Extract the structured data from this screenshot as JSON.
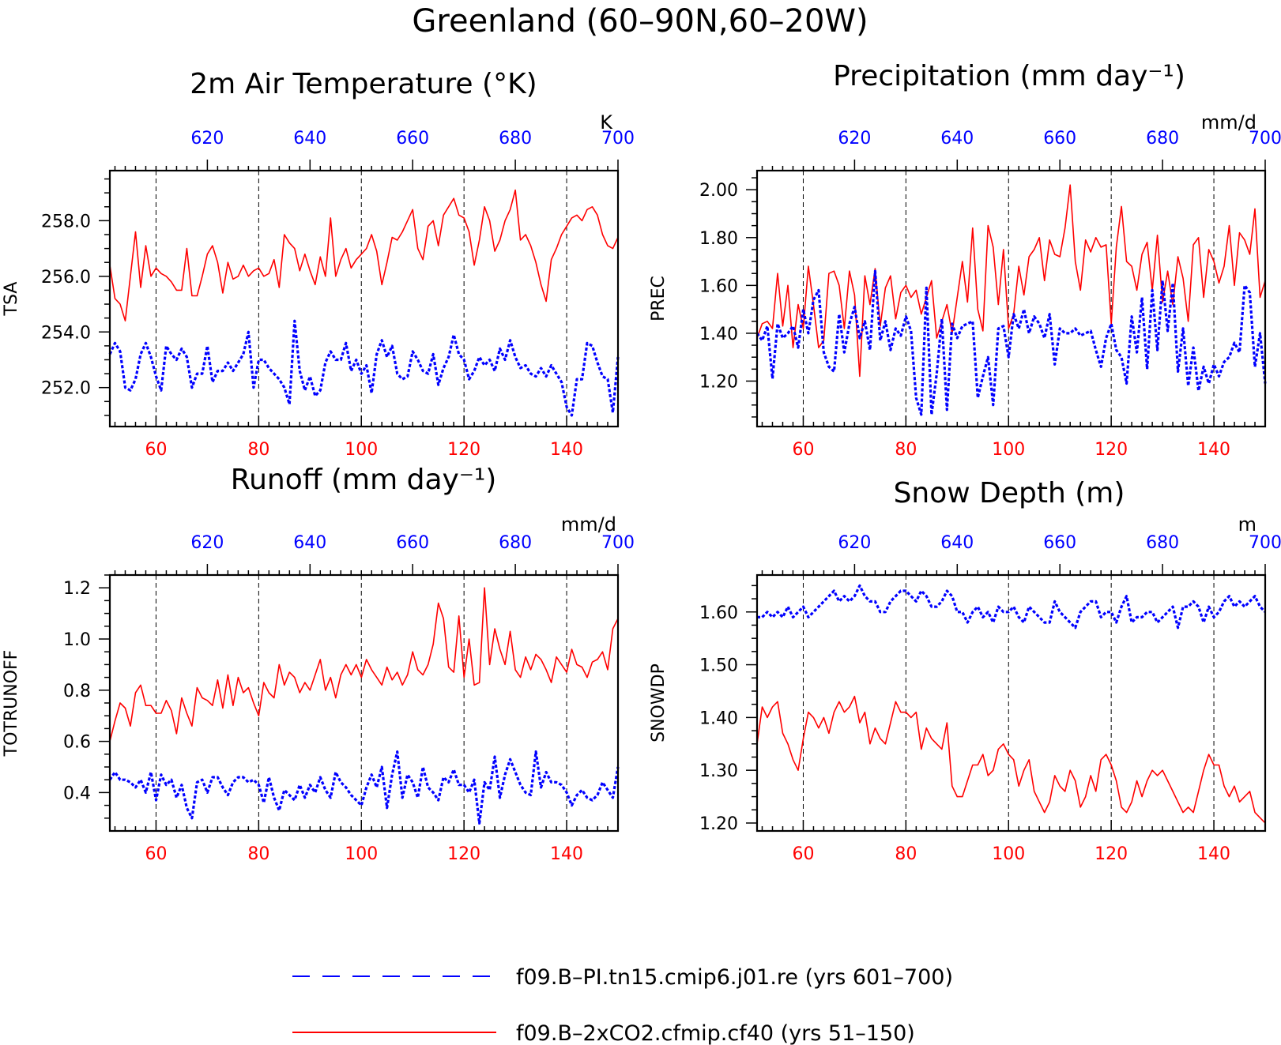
{
  "page_title": "Greenland (60–90N,60–20W)",
  "colors": {
    "red": "#ff0000",
    "blue": "#0000ff",
    "axis": "#000000"
  },
  "legend": [
    {
      "label": "f09.B–PI.tn15.cmip6.j01.re (yrs 601–700)",
      "color": "#0000ff",
      "style": "dashed"
    },
    {
      "label": "f09.B–2xCO2.cfmip.cf40 (yrs 51–150)",
      "color": "#ff0000",
      "style": "solid"
    }
  ],
  "chart_data": [
    {
      "id": "tsa",
      "type": "line",
      "title": "2m Air Temperature (°K)",
      "ylabel": "TSA",
      "units": "K",
      "xlim": [
        51,
        150
      ],
      "ylim": [
        250.6,
        259.8
      ],
      "yticks": [
        252.0,
        254.0,
        256.0,
        258.0
      ],
      "ytick_labels": [
        "252.0",
        "254.0",
        "256.0",
        "258.0"
      ],
      "xticks": [
        60,
        80,
        100,
        120,
        140
      ],
      "x_top_ticks": [
        620,
        640,
        660,
        680,
        700
      ],
      "x_top_range": [
        601,
        700
      ],
      "series": [
        {
          "values": [
            256.4,
            255.2,
            255.0,
            254.4,
            256.0,
            257.6,
            255.6,
            257.1,
            256.0,
            256.3,
            256.1,
            256.0,
            255.8,
            255.5,
            255.5,
            257.0,
            255.3,
            255.3,
            256.0,
            256.8,
            257.1,
            256.5,
            255.4,
            256.5,
            255.9,
            256.0,
            256.4,
            256.0,
            256.2,
            256.3,
            256.0,
            256.1,
            256.6,
            255.6,
            257.5,
            257.2,
            257.0,
            256.2,
            256.8,
            256.2,
            255.7,
            256.7,
            256.0,
            258.1,
            256.0,
            256.6,
            257.0,
            256.3,
            256.6,
            256.8,
            257.0,
            257.5,
            256.9,
            255.7,
            256.5,
            257.4,
            257.3,
            257.6,
            258.0,
            258.4,
            257.0,
            256.6,
            257.8,
            258.0,
            257.1,
            258.2,
            258.5,
            258.8,
            258.2,
            258.1,
            257.6,
            256.4,
            257.3,
            258.5,
            258.0,
            256.9,
            257.3,
            258.0,
            258.4,
            259.1,
            257.3,
            257.5,
            257.1,
            256.5,
            255.7,
            255.1,
            256.6,
            257.0,
            257.5,
            257.8,
            258.1,
            258.2,
            258.0,
            258.4,
            258.5,
            258.2,
            257.5,
            257.1,
            257.0,
            257.4
          ]
        },
        {
          "values": [
            253.2,
            253.6,
            253.3,
            252.0,
            251.9,
            252.3,
            253.2,
            253.6,
            253.1,
            252.4,
            251.9,
            253.5,
            253.2,
            253.0,
            253.4,
            253.1,
            252.0,
            252.5,
            252.5,
            253.5,
            252.2,
            252.6,
            252.6,
            252.9,
            252.6,
            252.9,
            253.2,
            254.0,
            252.0,
            253.0,
            253.0,
            252.7,
            252.5,
            252.3,
            252.0,
            251.4,
            254.4,
            252.6,
            251.9,
            252.4,
            251.7,
            251.9,
            252.9,
            253.3,
            253.0,
            253.0,
            253.6,
            252.6,
            253.0,
            252.5,
            252.8,
            251.8,
            253.2,
            253.7,
            253.1,
            253.5,
            252.5,
            252.3,
            252.4,
            253.3,
            253.0,
            252.6,
            252.5,
            253.2,
            252.1,
            252.7,
            253.1,
            253.9,
            253.2,
            253.0,
            252.3,
            252.6,
            253.1,
            252.8,
            253.0,
            252.6,
            253.4,
            253.0,
            253.7,
            253.1,
            252.7,
            252.8,
            252.5,
            252.4,
            252.7,
            252.4,
            252.8,
            252.5,
            252.2,
            251.3,
            251.0,
            252.3,
            252.3,
            253.6,
            253.5,
            252.9,
            252.4,
            252.3,
            251.1,
            253.1
          ]
        }
      ]
    },
    {
      "id": "prec",
      "type": "line",
      "title": "Precipitation (mm day⁻¹)",
      "ylabel": "PREC",
      "units": "mm/d",
      "xlim": [
        51,
        150
      ],
      "ylim": [
        1.01,
        2.08
      ],
      "yticks": [
        1.2,
        1.4,
        1.6,
        1.8,
        2.0
      ],
      "ytick_labels": [
        "1.20",
        "1.40",
        "1.60",
        "1.80",
        "2.00"
      ],
      "xticks": [
        60,
        80,
        100,
        120,
        140
      ],
      "x_top_ticks": [
        620,
        640,
        660,
        680,
        700
      ],
      "x_top_range": [
        601,
        700
      ],
      "series": [
        {
          "values": [
            1.38,
            1.44,
            1.45,
            1.42,
            1.65,
            1.43,
            1.6,
            1.34,
            1.52,
            1.42,
            1.68,
            1.52,
            1.34,
            1.37,
            1.65,
            1.66,
            1.6,
            1.42,
            1.66,
            1.56,
            1.22,
            1.64,
            1.52,
            1.67,
            1.43,
            1.59,
            1.64,
            1.46,
            1.57,
            1.6,
            1.55,
            1.58,
            1.48,
            1.55,
            1.62,
            1.38,
            1.45,
            1.52,
            1.4,
            1.55,
            1.7,
            1.53,
            1.84,
            1.5,
            1.41,
            1.85,
            1.76,
            1.52,
            1.75,
            1.42,
            1.48,
            1.68,
            1.56,
            1.72,
            1.75,
            1.8,
            1.62,
            1.79,
            1.73,
            1.72,
            1.84,
            2.02,
            1.7,
            1.58,
            1.79,
            1.74,
            1.8,
            1.76,
            1.77,
            1.44,
            1.76,
            1.93,
            1.7,
            1.68,
            1.58,
            1.73,
            1.78,
            1.58,
            1.81,
            1.53,
            1.66,
            1.52,
            1.72,
            1.63,
            1.45,
            1.77,
            1.8,
            1.55,
            1.75,
            1.7,
            1.61,
            1.68,
            1.85,
            1.6,
            1.82,
            1.79,
            1.73,
            1.92,
            1.55,
            1.62
          ]
        },
        {
          "values": [
            1.4,
            1.37,
            1.43,
            1.21,
            1.44,
            1.38,
            1.4,
            1.43,
            1.34,
            1.5,
            1.4,
            1.54,
            1.58,
            1.32,
            1.26,
            1.24,
            1.48,
            1.32,
            1.44,
            1.51,
            1.38,
            1.45,
            1.33,
            1.66,
            1.37,
            1.45,
            1.33,
            1.42,
            1.39,
            1.47,
            1.41,
            1.13,
            1.06,
            1.59,
            1.06,
            1.23,
            1.46,
            1.08,
            1.44,
            1.38,
            1.43,
            1.44,
            1.45,
            1.13,
            1.22,
            1.3,
            1.1,
            1.42,
            1.43,
            1.3,
            1.48,
            1.42,
            1.5,
            1.4,
            1.47,
            1.44,
            1.38,
            1.48,
            1.27,
            1.42,
            1.4,
            1.4,
            1.42,
            1.39,
            1.4,
            1.41,
            1.33,
            1.26,
            1.38,
            1.44,
            1.33,
            1.3,
            1.19,
            1.47,
            1.32,
            1.55,
            1.25,
            1.58,
            1.33,
            1.62,
            1.41,
            1.61,
            1.24,
            1.42,
            1.18,
            1.34,
            1.16,
            1.26,
            1.19,
            1.27,
            1.22,
            1.28,
            1.3,
            1.36,
            1.32,
            1.6,
            1.57,
            1.26,
            1.4,
            1.19
          ]
        }
      ]
    },
    {
      "id": "totrunoff",
      "type": "line",
      "title": "Runoff (mm day⁻¹)",
      "ylabel": "TOTRUNOFF",
      "units": "mm/d",
      "xlim": [
        51,
        150
      ],
      "ylim": [
        0.25,
        1.25
      ],
      "yticks": [
        0.4,
        0.6,
        0.8,
        1.0,
        1.2
      ],
      "ytick_labels": [
        "0.4",
        "0.6",
        "0.8",
        "1.0",
        "1.2"
      ],
      "xticks": [
        60,
        80,
        100,
        120,
        140
      ],
      "x_top_ticks": [
        620,
        640,
        660,
        680,
        700
      ],
      "x_top_range": [
        601,
        700
      ],
      "series": [
        {
          "values": [
            0.6,
            0.68,
            0.75,
            0.73,
            0.66,
            0.79,
            0.82,
            0.74,
            0.74,
            0.71,
            0.71,
            0.76,
            0.72,
            0.63,
            0.77,
            0.71,
            0.66,
            0.81,
            0.77,
            0.76,
            0.74,
            0.84,
            0.73,
            0.86,
            0.74,
            0.85,
            0.79,
            0.81,
            0.75,
            0.7,
            0.83,
            0.79,
            0.77,
            0.9,
            0.82,
            0.87,
            0.85,
            0.79,
            0.83,
            0.8,
            0.86,
            0.92,
            0.8,
            0.85,
            0.77,
            0.86,
            0.9,
            0.86,
            0.9,
            0.85,
            0.92,
            0.88,
            0.85,
            0.82,
            0.89,
            0.84,
            0.87,
            0.82,
            0.86,
            0.95,
            0.88,
            0.86,
            0.9,
            0.98,
            1.14,
            1.08,
            0.89,
            0.87,
            1.09,
            0.85,
            1.0,
            0.82,
            0.83,
            1.2,
            0.9,
            1.04,
            0.96,
            0.9,
            1.03,
            0.88,
            0.85,
            0.93,
            0.88,
            0.94,
            0.92,
            0.88,
            0.83,
            0.93,
            0.9,
            0.87,
            0.96,
            0.9,
            0.89,
            0.85,
            0.91,
            0.92,
            0.95,
            0.88,
            1.04,
            1.08
          ]
        },
        {
          "values": [
            0.45,
            0.48,
            0.45,
            0.45,
            0.44,
            0.42,
            0.45,
            0.4,
            0.48,
            0.37,
            0.47,
            0.43,
            0.45,
            0.38,
            0.43,
            0.34,
            0.3,
            0.44,
            0.45,
            0.4,
            0.46,
            0.46,
            0.42,
            0.39,
            0.44,
            0.46,
            0.46,
            0.44,
            0.45,
            0.43,
            0.36,
            0.46,
            0.38,
            0.33,
            0.41,
            0.39,
            0.37,
            0.43,
            0.38,
            0.43,
            0.4,
            0.46,
            0.41,
            0.38,
            0.48,
            0.44,
            0.42,
            0.39,
            0.37,
            0.35,
            0.42,
            0.47,
            0.42,
            0.5,
            0.34,
            0.47,
            0.56,
            0.38,
            0.47,
            0.44,
            0.38,
            0.5,
            0.42,
            0.4,
            0.37,
            0.46,
            0.44,
            0.49,
            0.43,
            0.43,
            0.4,
            0.45,
            0.28,
            0.44,
            0.41,
            0.54,
            0.38,
            0.47,
            0.53,
            0.48,
            0.43,
            0.4,
            0.39,
            0.56,
            0.42,
            0.48,
            0.44,
            0.44,
            0.43,
            0.4,
            0.35,
            0.39,
            0.41,
            0.38,
            0.37,
            0.39,
            0.44,
            0.41,
            0.38,
            0.5
          ]
        }
      ]
    },
    {
      "id": "snowdp",
      "type": "line",
      "title": "Snow Depth (m)",
      "ylabel": "SNOWDP",
      "units": "m",
      "xlim": [
        51,
        150
      ],
      "ylim": [
        1.185,
        1.67
      ],
      "yticks": [
        1.2,
        1.3,
        1.4,
        1.5,
        1.6
      ],
      "ytick_labels": [
        "1.20",
        "1.30",
        "1.40",
        "1.50",
        "1.60"
      ],
      "xticks": [
        60,
        80,
        100,
        120,
        140
      ],
      "x_top_ticks": [
        620,
        640,
        660,
        680,
        700
      ],
      "x_top_range": [
        601,
        700
      ],
      "series": [
        {
          "values": [
            1.35,
            1.42,
            1.4,
            1.42,
            1.43,
            1.37,
            1.35,
            1.32,
            1.3,
            1.36,
            1.41,
            1.4,
            1.38,
            1.4,
            1.37,
            1.41,
            1.43,
            1.41,
            1.42,
            1.44,
            1.39,
            1.41,
            1.35,
            1.38,
            1.36,
            1.35,
            1.39,
            1.43,
            1.41,
            1.41,
            1.4,
            1.41,
            1.34,
            1.38,
            1.36,
            1.35,
            1.34,
            1.39,
            1.27,
            1.25,
            1.25,
            1.28,
            1.31,
            1.31,
            1.33,
            1.29,
            1.3,
            1.34,
            1.35,
            1.33,
            1.32,
            1.27,
            1.3,
            1.32,
            1.26,
            1.24,
            1.22,
            1.24,
            1.29,
            1.27,
            1.26,
            1.3,
            1.28,
            1.23,
            1.25,
            1.29,
            1.26,
            1.32,
            1.33,
            1.31,
            1.28,
            1.23,
            1.22,
            1.24,
            1.28,
            1.25,
            1.28,
            1.3,
            1.29,
            1.3,
            1.28,
            1.26,
            1.24,
            1.22,
            1.23,
            1.22,
            1.26,
            1.3,
            1.33,
            1.31,
            1.31,
            1.27,
            1.25,
            1.27,
            1.24,
            1.25,
            1.26,
            1.22,
            1.21,
            1.2
          ]
        },
        {
          "values": [
            1.59,
            1.59,
            1.6,
            1.59,
            1.6,
            1.59,
            1.61,
            1.59,
            1.6,
            1.61,
            1.59,
            1.6,
            1.61,
            1.62,
            1.63,
            1.64,
            1.62,
            1.63,
            1.62,
            1.63,
            1.65,
            1.63,
            1.62,
            1.62,
            1.6,
            1.6,
            1.62,
            1.63,
            1.64,
            1.64,
            1.63,
            1.62,
            1.64,
            1.63,
            1.61,
            1.61,
            1.62,
            1.64,
            1.63,
            1.6,
            1.6,
            1.58,
            1.6,
            1.61,
            1.59,
            1.6,
            1.58,
            1.61,
            1.6,
            1.6,
            1.61,
            1.59,
            1.58,
            1.61,
            1.6,
            1.59,
            1.58,
            1.58,
            1.62,
            1.6,
            1.59,
            1.58,
            1.57,
            1.6,
            1.61,
            1.62,
            1.62,
            1.59,
            1.6,
            1.6,
            1.58,
            1.61,
            1.63,
            1.58,
            1.59,
            1.59,
            1.6,
            1.6,
            1.58,
            1.59,
            1.6,
            1.61,
            1.57,
            1.61,
            1.61,
            1.62,
            1.61,
            1.58,
            1.61,
            1.59,
            1.6,
            1.62,
            1.63,
            1.61,
            1.62,
            1.61,
            1.62,
            1.63,
            1.61,
            1.6
          ]
        }
      ]
    }
  ]
}
